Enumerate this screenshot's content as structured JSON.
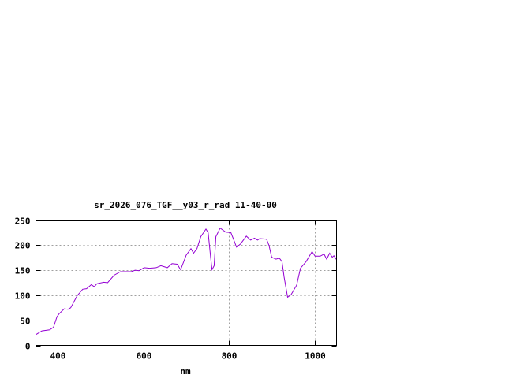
{
  "chart_data": {
    "type": "line",
    "title": "sr_2026_076_TGF__y03_r_rad 11-40-00",
    "xlabel": "nm",
    "ylabel": "",
    "xlim": [
      350,
      1050
    ],
    "ylim": [
      0,
      250
    ],
    "xticks": [
      400,
      600,
      800,
      1000
    ],
    "yticks": [
      0,
      50,
      100,
      150,
      200,
      250
    ],
    "grid": true,
    "line_color": "#9400d3",
    "series": [
      {
        "x": [
          350,
          364,
          382,
          391,
          399,
          404,
          416,
          425,
          431,
          446,
          459,
          468,
          479,
          486,
          492,
          508,
          517,
          532,
          547,
          572,
          581,
          590,
          602,
          615,
          630,
          641,
          656,
          667,
          679,
          687,
          700,
          711,
          717,
          725,
          734,
          746,
          751,
          757,
          760,
          765,
          769,
          779,
          792,
          804,
          810,
          817,
          826,
          840,
          850,
          859,
          866,
          871,
          887,
          893,
          899,
          909,
          917,
          923,
          928,
          936,
          944,
          957,
          966,
          979,
          993,
          1000,
          1012,
          1021,
          1027,
          1034,
          1040,
          1044,
          1050
        ],
        "y": [
          21.5,
          29,
          31,
          36,
          57,
          63,
          73,
          72,
          75,
          99,
          112,
          113,
          121,
          117,
          123,
          126,
          125,
          140,
          147,
          147,
          150,
          149,
          155,
          154,
          155,
          159,
          155,
          163,
          162,
          151,
          180,
          193,
          184,
          193,
          217,
          232,
          225,
          175,
          151,
          159,
          217,
          234,
          226,
          225,
          212,
          196,
          202,
          218,
          210,
          214,
          210,
          213,
          212,
          199,
          176,
          172,
          174,
          167,
          136,
          96,
          101,
          120,
          154,
          167,
          187,
          178,
          178,
          182,
          172,
          184,
          176,
          179,
          171
        ]
      }
    ]
  }
}
